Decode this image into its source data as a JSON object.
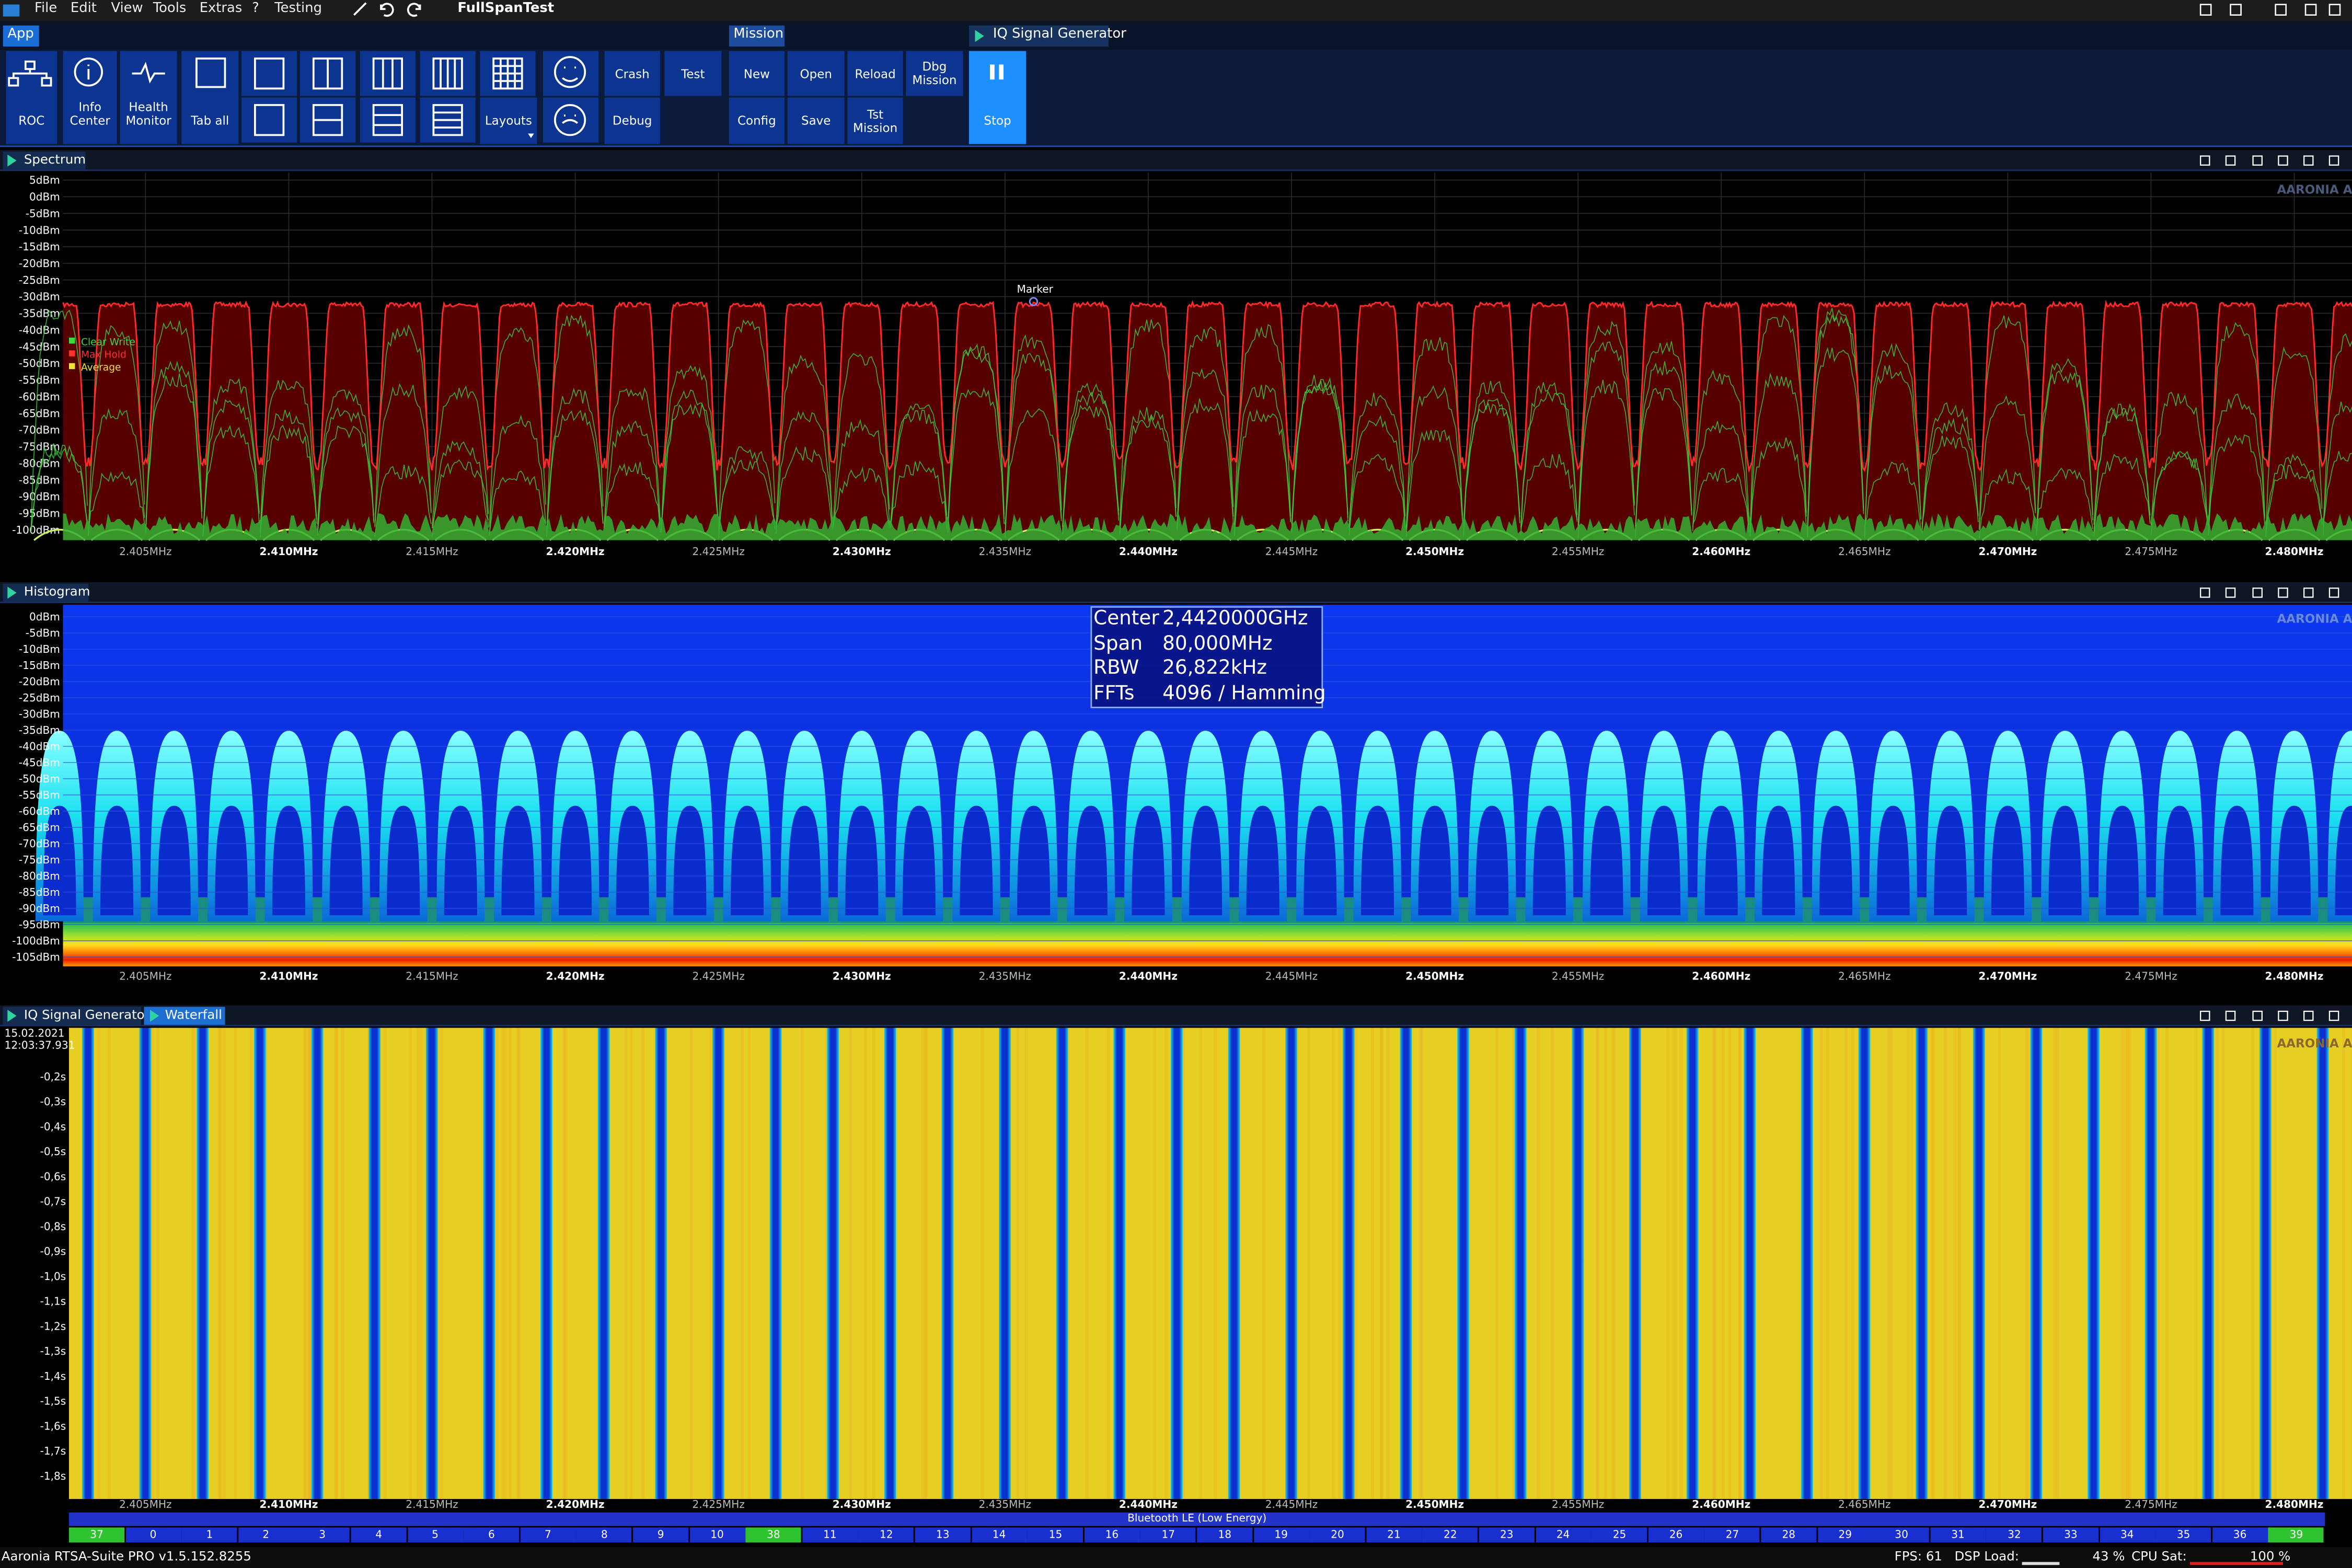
{
  "menu": {
    "items": [
      "File",
      "Edit",
      "View",
      "Tools",
      "Extras",
      "?",
      "Testing"
    ],
    "project": "FullSpanTest"
  },
  "tabs": {
    "app": "App",
    "mission": "Mission",
    "iq": "IQ Signal Generator"
  },
  "ribbon": {
    "app": [
      "ROC",
      "Info Center",
      "Health Monitor",
      "Tab all",
      "Layouts",
      "Crash",
      "Test",
      "Debug"
    ],
    "mission": [
      "New",
      "Open",
      "Reload",
      "Dbg Mission",
      "Config",
      "Save",
      "Tst Mission"
    ],
    "iq": [
      "Stop"
    ]
  },
  "watermark": "AARONIA AG",
  "freq_labels": [
    "2.405MHz",
    "2.410MHz",
    "2.415MHz",
    "2.420MHz",
    "2.425MHz",
    "2.430MHz",
    "2.435MHz",
    "2.440MHz",
    "2.445MHz",
    "2.450MHz",
    "2.455MHz",
    "2.460MHz",
    "2.465MHz",
    "2.470MHz",
    "2.475MHz",
    "2.480MHz"
  ],
  "spectrum": {
    "title": "Spectrum",
    "y_labels": [
      "5dBm",
      "0dBm",
      "-5dBm",
      "-10dBm",
      "-15dBm",
      "-20dBm",
      "-25dBm",
      "-30dBm",
      "-35dBm",
      "-40dBm",
      "-45dBm",
      "-50dBm",
      "-55dBm",
      "-60dBm",
      "-65dBm",
      "-70dBm",
      "-75dBm",
      "-80dBm",
      "-85dBm",
      "-90dBm",
      "-95dBm",
      "-100dBm"
    ],
    "legend": [
      {
        "name": "Clear Write",
        "color": "#3ddc3d"
      },
      {
        "name": "Max Hold",
        "color": "#ff3030"
      },
      {
        "name": "Average",
        "color": "#f0e040"
      }
    ],
    "marker": "Marker"
  },
  "histogram": {
    "title": "Histogram",
    "y_labels": [
      "0dBm",
      "-5dBm",
      "-10dBm",
      "-15dBm",
      "-20dBm",
      "-25dBm",
      "-30dBm",
      "-35dBm",
      "-40dBm",
      "-45dBm",
      "-50dBm",
      "-55dBm",
      "-60dBm",
      "-65dBm",
      "-70dBm",
      "-75dBm",
      "-80dBm",
      "-85dBm",
      "-90dBm",
      "-95dBm",
      "-100dBm",
      "-105dBm"
    ],
    "info": [
      {
        "label": "Center",
        "value": "2,4420000GHz"
      },
      {
        "label": "Span",
        "value": "80,000MHz"
      },
      {
        "label": "RBW",
        "value": "26,822kHz"
      },
      {
        "label": "FFTs",
        "value": "4096 / Hamming"
      }
    ]
  },
  "waterfall": {
    "tabs": [
      "IQ Signal Generator",
      "Waterfall"
    ],
    "date": "15.02.2021",
    "time": "12:03:37.931",
    "y_labels": [
      "-0,2s",
      "-0,3s",
      "-0,4s",
      "-0,5s",
      "-0,6s",
      "-0,7s",
      "-0,8s",
      "-0,9s",
      "-1,0s",
      "-1,1s",
      "-1,2s",
      "-1,3s",
      "-1,4s",
      "-1,5s",
      "-1,6s",
      "-1,7s",
      "-1,8s"
    ],
    "band": "Bluetooth LE (Low Energy)",
    "channels": [
      37,
      0,
      1,
      2,
      3,
      4,
      5,
      6,
      7,
      8,
      9,
      10,
      38,
      11,
      12,
      13,
      14,
      15,
      16,
      17,
      18,
      19,
      20,
      21,
      22,
      23,
      24,
      25,
      26,
      27,
      28,
      29,
      30,
      31,
      32,
      33,
      34,
      35,
      36,
      39
    ],
    "channel_colors": [
      "#2fc42f",
      "#1a2fd0",
      "#1a2fd0",
      "#1a2fd0",
      "#1a2fd0",
      "#1a2fd0",
      "#1a2fd0",
      "#1a2fd0",
      "#1a2fd0",
      "#1a2fd0",
      "#1a2fd0",
      "#1a2fd0",
      "#2fc42f",
      "#1a2fd0",
      "#1a2fd0",
      "#1a2fd0",
      "#1a2fd0",
      "#1a2fd0",
      "#1a2fd0",
      "#1a2fd0",
      "#1a2fd0",
      "#1a2fd0",
      "#1a2fd0",
      "#1a2fd0",
      "#1a2fd0",
      "#1a2fd0",
      "#1a2fd0",
      "#1a2fd0",
      "#1a2fd0",
      "#1a2fd0",
      "#1a2fd0",
      "#1a2fd0",
      "#1a2fd0",
      "#1a2fd0",
      "#1a2fd0",
      "#1a2fd0",
      "#1a2fd0",
      "#1a2fd0",
      "#1a2fd0",
      "#2fc42f"
    ]
  },
  "status": {
    "app": "Aaronia RTSA-Suite PRO v1.5.152.8255",
    "fps": "FPS: 61",
    "dsp_label": "DSP Load:",
    "dsp": "43 %",
    "cpu_label": "CPU Sat:",
    "cpu": "100 %"
  }
}
